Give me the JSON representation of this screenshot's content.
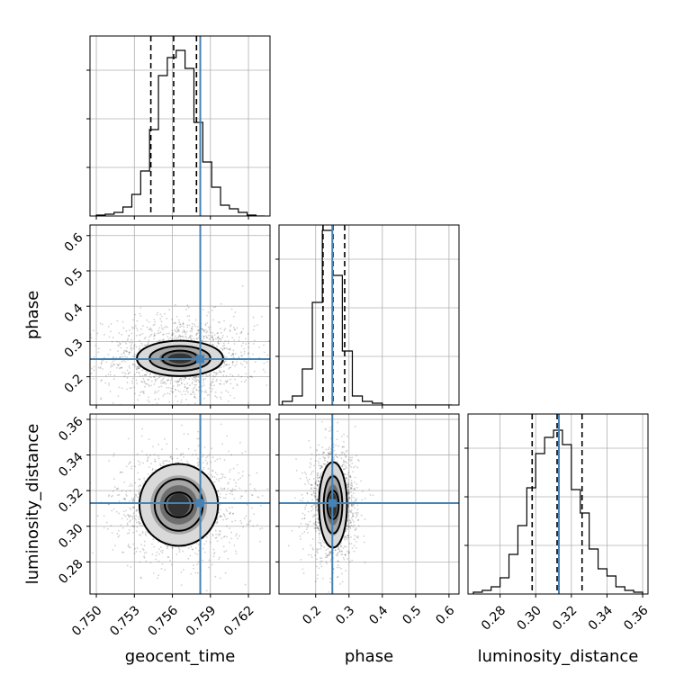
{
  "chart_data": {
    "type": "corner",
    "parameters": [
      "geocent_time",
      "phase",
      "luminosity_distance"
    ],
    "truths": {
      "geocent_time": 0.7582,
      "phase": 0.25,
      "luminosity_distance": 0.313
    },
    "colors": {
      "truth": "#4682b4",
      "hist": "#000000",
      "grid": "#b0b0b0"
    },
    "grid": true,
    "panels": [
      {
        "id": "hist-geocent_time",
        "type": "histogram",
        "x": "geocent_time",
        "xlim": [
          0.7495,
          0.7637
        ],
        "ylim": [
          0,
          1.0
        ],
        "bin_edges": [
          0.75,
          0.7507,
          0.7514,
          0.7521,
          0.7528,
          0.7535,
          0.7542,
          0.7549,
          0.7556,
          0.7563,
          0.757,
          0.7577,
          0.7584,
          0.7591,
          0.7598,
          0.7605,
          0.7612,
          0.7619,
          0.7626,
          0.7633
        ],
        "counts": [
          0.005,
          0.01,
          0.02,
          0.05,
          0.12,
          0.25,
          0.48,
          0.78,
          0.88,
          0.92,
          0.82,
          0.52,
          0.3,
          0.16,
          0.06,
          0.04,
          0.02,
          0.005,
          0.0
        ],
        "quantiles": [
          0.7543,
          0.7561,
          0.7579
        ],
        "truth": 0.7582,
        "xticks": [
          0.75,
          0.753,
          0.756,
          0.759,
          0.762
        ]
      },
      {
        "id": "hist-phase",
        "type": "histogram",
        "x": "phase",
        "xlim": [
          0.09,
          0.63
        ],
        "ylim": [
          0,
          1.0
        ],
        "bin_edges": [
          0.1,
          0.13,
          0.16,
          0.19,
          0.22,
          0.25,
          0.28,
          0.31,
          0.34,
          0.37,
          0.4,
          0.43,
          0.46,
          0.49,
          0.52,
          0.55,
          0.58,
          0.61
        ],
        "counts": [
          0.02,
          0.05,
          0.2,
          0.57,
          0.97,
          0.72,
          0.3,
          0.05,
          0.02,
          0.01,
          0.0,
          0.0,
          0.0,
          0.0,
          0.0,
          0.0,
          0.0
        ],
        "quantiles": [
          0.222,
          0.252,
          0.287
        ],
        "truth": 0.25,
        "xticks": [
          0.2,
          0.3,
          0.4,
          0.5,
          0.6
        ]
      },
      {
        "id": "hist-luminosity_distance",
        "type": "histogram",
        "x": "luminosity_distance",
        "xlim": [
          0.262,
          0.363
        ],
        "ylim": [
          0,
          1.0
        ],
        "bin_edges": [
          0.265,
          0.27,
          0.275,
          0.28,
          0.285,
          0.29,
          0.295,
          0.3,
          0.305,
          0.31,
          0.315,
          0.32,
          0.325,
          0.33,
          0.335,
          0.34,
          0.345,
          0.35,
          0.355,
          0.36
        ],
        "counts": [
          0.01,
          0.02,
          0.04,
          0.09,
          0.22,
          0.38,
          0.59,
          0.78,
          0.87,
          0.91,
          0.83,
          0.58,
          0.45,
          0.25,
          0.14,
          0.1,
          0.04,
          0.02,
          0.01
        ],
        "quantiles": [
          0.298,
          0.312,
          0.326
        ],
        "truth": 0.313,
        "xticks": [
          0.28,
          0.3,
          0.32,
          0.34,
          0.36
        ]
      },
      {
        "id": "scatter-phase-vs-geocent_time",
        "type": "density",
        "x": "geocent_time",
        "y": "phase",
        "xlim": [
          0.7495,
          0.7637
        ],
        "ylim": [
          0.12,
          0.63
        ],
        "center": [
          0.7566,
          0.252
        ],
        "spread": [
          0.0026,
          0.052
        ],
        "contour_widths": [
          [
            0.0014,
            0.022
          ],
          [
            0.0024,
            0.035
          ],
          [
            0.0034,
            0.05
          ]
        ],
        "truth": [
          0.7582,
          0.25
        ],
        "yticks": [
          0.2,
          0.3,
          0.4,
          0.5,
          0.6
        ],
        "xticks": [
          0.75,
          0.753,
          0.756,
          0.759,
          0.762
        ]
      },
      {
        "id": "scatter-distance-vs-geocent_time",
        "type": "density",
        "x": "geocent_time",
        "y": "luminosity_distance",
        "xlim": [
          0.7495,
          0.7637
        ],
        "ylim": [
          0.262,
          0.363
        ],
        "center": [
          0.7565,
          0.312
        ],
        "spread": [
          0.0022,
          0.0135
        ],
        "contour_widths": [
          [
            0.0011,
            0.007
          ],
          [
            0.0019,
            0.0145
          ],
          [
            0.0031,
            0.023
          ]
        ],
        "truth": [
          0.7582,
          0.313
        ],
        "yticks": [
          0.28,
          0.3,
          0.32,
          0.34,
          0.36
        ],
        "xticks": [
          0.75,
          0.753,
          0.756,
          0.759,
          0.762
        ]
      },
      {
        "id": "scatter-distance-vs-phase",
        "type": "density",
        "x": "phase",
        "y": "luminosity_distance",
        "xlim": [
          0.09,
          0.63
        ],
        "ylim": [
          0.262,
          0.363
        ],
        "center": [
          0.252,
          0.312
        ],
        "spread": [
          0.032,
          0.0135
        ],
        "contour_widths": [
          [
            0.017,
            0.008
          ],
          [
            0.028,
            0.016
          ],
          [
            0.042,
            0.024
          ]
        ],
        "truth": [
          0.25,
          0.313
        ],
        "yticks": [
          0.28,
          0.3,
          0.32,
          0.34,
          0.36
        ],
        "xticks": [
          0.2,
          0.3,
          0.4,
          0.5,
          0.6
        ]
      }
    ],
    "axis_labels": {
      "x": [
        "geocent_time",
        "phase",
        "luminosity_distance"
      ],
      "y": [
        "phase",
        "luminosity_distance"
      ]
    }
  }
}
